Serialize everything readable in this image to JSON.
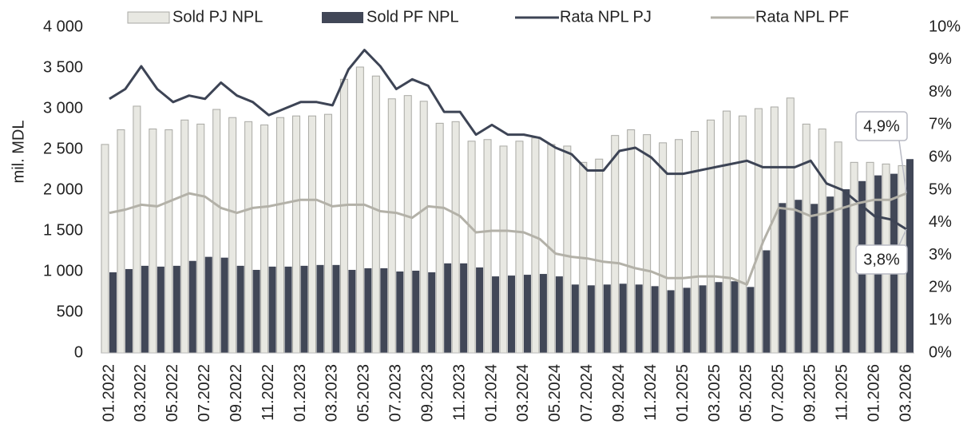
{
  "chart_data": {
    "type": "combo",
    "y_label": "mil. MDL",
    "categories": [
      "01.2022",
      null,
      "03.2022",
      null,
      "05.2022",
      null,
      "07.2022",
      null,
      "09.2022",
      null,
      "11.2022",
      null,
      "01.2023",
      null,
      "03.2023",
      null,
      "05.2023",
      null,
      "07.2023",
      null,
      "09.2023",
      null,
      "11.2023",
      null,
      "01.2024",
      null,
      "03.2024",
      null,
      "05.2024",
      null,
      "07.2024",
      null,
      "09.2024",
      null,
      "11.2024",
      null,
      "01.2025",
      null,
      "03.2025",
      null,
      "05.2025",
      null,
      "07.2025",
      null,
      "09.2025",
      null,
      "11.2025",
      null,
      "01.2026",
      null,
      "03.2026"
    ],
    "series": [
      {
        "name": "Sold PJ NPL",
        "type": "bar",
        "color": "#e8e8e2",
        "stroke": "#a9a9a4",
        "values": [
          2560,
          2740,
          3030,
          2750,
          2740,
          2860,
          2810,
          2990,
          2890,
          2840,
          2800,
          2890,
          2910,
          2910,
          2930,
          3360,
          3510,
          3400,
          3120,
          3160,
          3090,
          2820,
          2840,
          2600,
          2620,
          2540,
          2600,
          2640,
          2560,
          2540,
          2340,
          2380,
          2670,
          2740,
          2680,
          2580,
          2620,
          2720,
          2860,
          2970,
          2910,
          3000,
          3020,
          3130,
          2810,
          2750,
          2590,
          2340,
          2340,
          2320,
          2300
        ]
      },
      {
        "name": "Sold PF NPL",
        "type": "bar",
        "color": "#414757",
        "values": [
          990,
          1030,
          1070,
          1060,
          1070,
          1130,
          1180,
          1170,
          1070,
          1020,
          1060,
          1060,
          1070,
          1080,
          1080,
          1020,
          1040,
          1040,
          1000,
          1010,
          990,
          1100,
          1100,
          1050,
          940,
          950,
          960,
          970,
          940,
          840,
          830,
          840,
          850,
          840,
          820,
          770,
          800,
          830,
          870,
          880,
          810,
          1260,
          1840,
          1880,
          1830,
          1920,
          2010,
          2110,
          2180,
          2200,
          2380
        ]
      },
      {
        "name": "Rata NPL PJ",
        "type": "line",
        "axis": "y2",
        "color": "#3d4455",
        "values": [
          7.8,
          8.1,
          8.8,
          8.1,
          7.7,
          7.9,
          7.8,
          8.3,
          7.9,
          7.7,
          7.3,
          7.5,
          7.7,
          7.7,
          7.6,
          8.7,
          9.3,
          8.8,
          8.1,
          8.4,
          8.2,
          7.4,
          7.4,
          6.7,
          7.0,
          6.7,
          6.7,
          6.6,
          6.3,
          6.1,
          5.6,
          5.6,
          6.2,
          6.3,
          6.0,
          5.5,
          5.5,
          5.6,
          5.7,
          5.8,
          5.9,
          5.7,
          5.7,
          5.7,
          5.9,
          5.2,
          5.0,
          4.6,
          4.2,
          4.1,
          3.8
        ],
        "value_labels": [
          null,
          null,
          null,
          null,
          null,
          null,
          null,
          null,
          null,
          null,
          null,
          null,
          null,
          null,
          null,
          null,
          null,
          null,
          null,
          null,
          null,
          null,
          null,
          null,
          null,
          null,
          null,
          null,
          null,
          null,
          null,
          null,
          null,
          null,
          null,
          null,
          null,
          null,
          null,
          null,
          null,
          null,
          null,
          null,
          null,
          null,
          null,
          null,
          null,
          null,
          "3,8%"
        ]
      },
      {
        "name": "Rata NPL PF",
        "type": "line",
        "axis": "y2",
        "color": "#b3b1a8",
        "values": [
          4.3,
          4.4,
          4.55,
          4.5,
          4.7,
          4.9,
          4.8,
          4.45,
          4.3,
          4.45,
          4.5,
          4.6,
          4.7,
          4.7,
          4.5,
          4.55,
          4.55,
          4.35,
          4.3,
          4.15,
          4.5,
          4.45,
          4.2,
          3.7,
          3.75,
          3.75,
          3.7,
          3.5,
          3.05,
          2.95,
          2.9,
          2.8,
          2.75,
          2.6,
          2.5,
          2.3,
          2.3,
          2.35,
          2.35,
          2.3,
          2.1,
          3.4,
          4.45,
          4.4,
          4.2,
          4.3,
          4.45,
          4.6,
          4.7,
          4.7,
          4.9
        ],
        "value_labels": [
          null,
          null,
          null,
          null,
          null,
          null,
          null,
          null,
          null,
          null,
          null,
          null,
          null,
          null,
          null,
          null,
          null,
          null,
          null,
          null,
          null,
          null,
          null,
          null,
          null,
          null,
          null,
          null,
          null,
          null,
          null,
          null,
          null,
          null,
          null,
          null,
          null,
          null,
          null,
          null,
          null,
          null,
          null,
          null,
          null,
          null,
          null,
          null,
          null,
          null,
          "4,9%"
        ]
      }
    ],
    "ylim": [
      0,
      4000
    ],
    "yticks": [
      0,
      500,
      {
        "value": 1000,
        "label": "1 000"
      },
      {
        "value": 1500,
        "label": "1 500"
      },
      {
        "value": 2000,
        "label": "2 000"
      },
      {
        "value": 2500,
        "label": "2 500"
      },
      {
        "value": 3000,
        "label": "3 000"
      },
      {
        "value": 3500,
        "label": "3 500"
      },
      {
        "value": 4000,
        "label": "4 000"
      }
    ],
    "y2lim": [
      0,
      10
    ],
    "y2ticks": [
      {
        "value": 0,
        "label": "0%"
      },
      {
        "value": 1,
        "label": "1%"
      },
      {
        "value": 2,
        "label": "2%"
      },
      {
        "value": 3,
        "label": "3%"
      },
      {
        "value": 4,
        "label": "4%"
      },
      {
        "value": 5,
        "label": "5%"
      },
      {
        "value": 6,
        "label": "6%"
      },
      {
        "value": 7,
        "label": "7%"
      },
      {
        "value": 8,
        "label": "8%"
      },
      {
        "value": 9,
        "label": "9%"
      },
      {
        "value": 10,
        "label": "10%"
      }
    ],
    "grid": false,
    "legend": "top"
  }
}
